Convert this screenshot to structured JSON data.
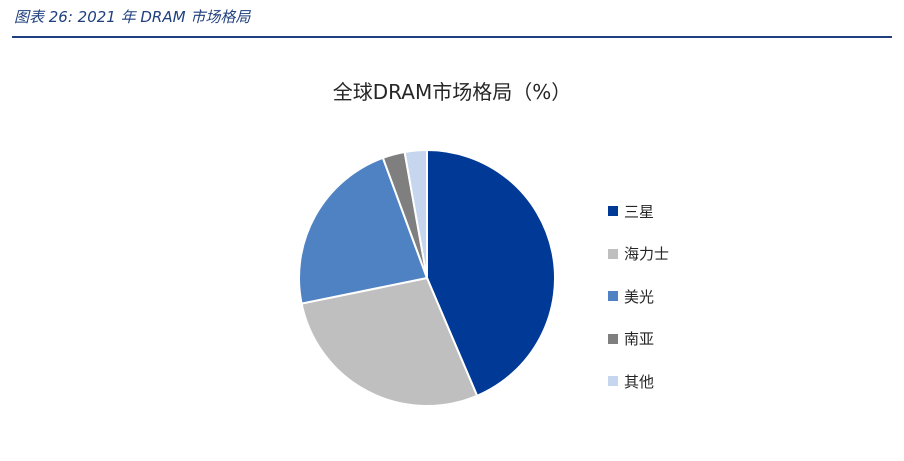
{
  "caption": "图表 26:  2021 年 DRAM 市场格局",
  "chart_data": {
    "type": "pie",
    "title": "全球DRAM市场格局（%）",
    "legend_position": "right",
    "series": [
      {
        "name": "三星",
        "value": 43.6,
        "color": "#003a96"
      },
      {
        "name": "海力士",
        "value": 28.2,
        "color": "#bfbfbf"
      },
      {
        "name": "美光",
        "value": 22.6,
        "color": "#4f82c3"
      },
      {
        "name": "南亚",
        "value": 2.8,
        "color": "#7f7f7f"
      },
      {
        "name": "其他",
        "value": 2.8,
        "color": "#c5d6ee"
      }
    ]
  }
}
